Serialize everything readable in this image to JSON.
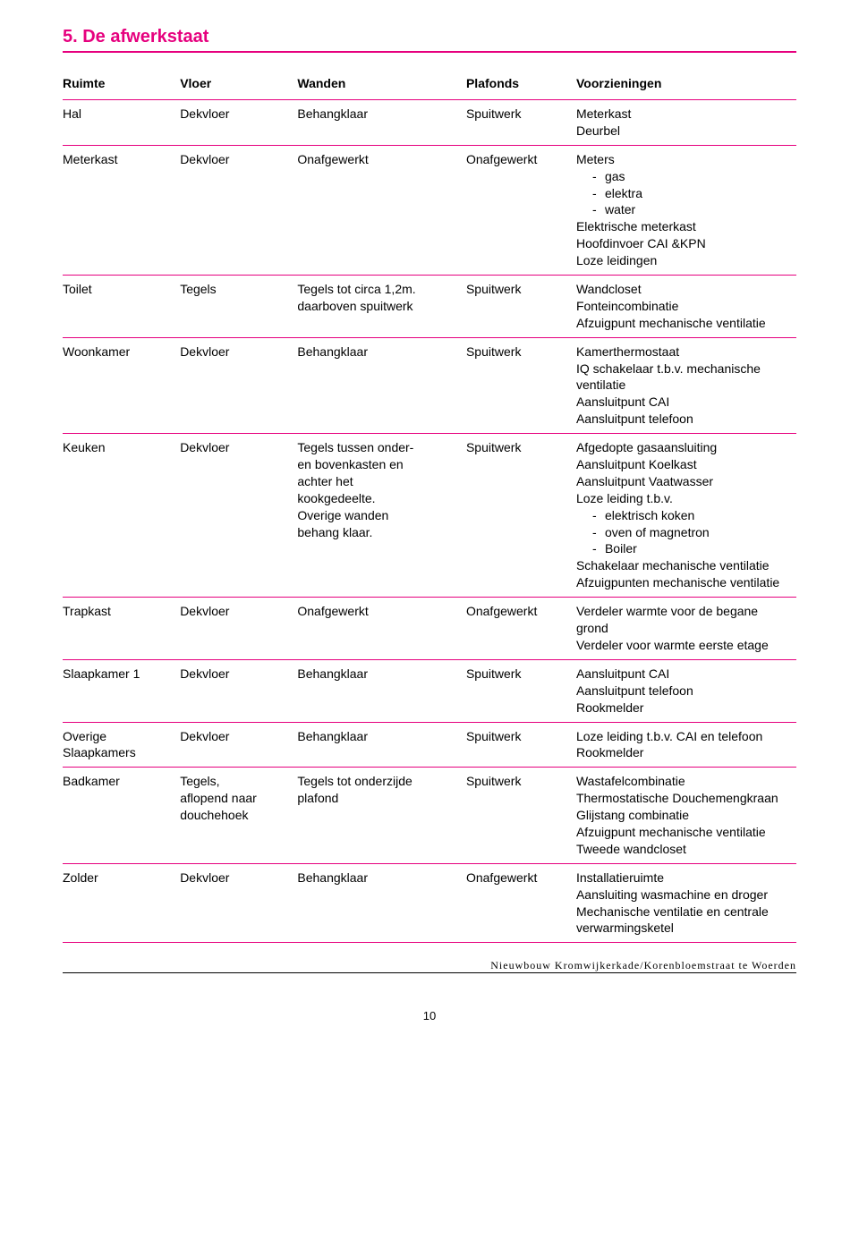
{
  "accent_color": "#e6007e",
  "heading": "5. De afwerkstaat",
  "columns": [
    "Ruimte",
    "Vloer",
    "Wanden",
    "Plafonds",
    "Voorzieningen"
  ],
  "rows": [
    {
      "ruimte": "Hal",
      "vloer": "Dekvloer",
      "wanden": "Behangklaar",
      "plafonds": "Spuitwerk",
      "voorz_lines": [
        "Meterkast",
        "Deurbel"
      ]
    },
    {
      "ruimte": "Meterkast",
      "vloer": "Dekvloer",
      "wanden": "Onafgewerkt",
      "plafonds": "Onafgewerkt",
      "voorz_lines": [
        "Meters"
      ],
      "voorz_sublist": [
        "gas",
        "elektra",
        "water"
      ],
      "voorz_lines_after": [
        "Elektrische meterkast",
        "Hoofdinvoer CAI &KPN",
        "Loze leidingen"
      ]
    },
    {
      "ruimte": "Toilet",
      "vloer": "Tegels",
      "wanden": "Tegels tot circa 1,2m.\ndaarboven spuitwerk",
      "plafonds": "Spuitwerk",
      "voorz_lines": [
        "Wandcloset",
        "Fonteincombinatie",
        "Afzuigpunt mechanische ventilatie"
      ]
    },
    {
      "ruimte": "Woonkamer",
      "vloer": "Dekvloer",
      "wanden": "Behangklaar",
      "plafonds": "Spuitwerk",
      "voorz_lines": [
        "Kamerthermostaat",
        "IQ schakelaar t.b.v. mechanische ventilatie",
        "Aansluitpunt CAI",
        "Aansluitpunt telefoon"
      ]
    },
    {
      "ruimte": "Keuken",
      "vloer": "Dekvloer",
      "wanden": "Tegels tussen onder-\nen bovenkasten en\nachter het\nkookgedeelte.\nOverige wanden\nbehang klaar.",
      "plafonds": "Spuitwerk",
      "voorz_lines": [
        "Afgedopte gasaansluiting",
        "Aansluitpunt Koelkast",
        "Aansluitpunt Vaatwasser",
        "Loze leiding t.b.v."
      ],
      "voorz_sublist": [
        "elektrisch koken",
        "oven of magnetron",
        "Boiler"
      ],
      "voorz_lines_after": [
        "Schakelaar mechanische ventilatie",
        "Afzuigpunten mechanische ventilatie"
      ]
    },
    {
      "ruimte": "Trapkast",
      "vloer": "Dekvloer",
      "wanden": "Onafgewerkt",
      "plafonds": "Onafgewerkt",
      "voorz_lines": [
        "Verdeler warmte voor de begane grond",
        "Verdeler voor warmte eerste etage"
      ]
    },
    {
      "ruimte": "Slaapkamer 1",
      "vloer": "Dekvloer",
      "wanden": "Behangklaar",
      "plafonds": "Spuitwerk",
      "voorz_lines": [
        "Aansluitpunt CAI",
        "Aansluitpunt telefoon",
        "Rookmelder"
      ]
    },
    {
      "ruimte": "Overige Slaapkamers",
      "vloer": "Dekvloer",
      "wanden": "Behangklaar",
      "plafonds": "Spuitwerk",
      "voorz_lines": [
        "Loze leiding t.b.v. CAI en telefoon",
        "Rookmelder"
      ]
    },
    {
      "ruimte": "Badkamer",
      "vloer": "Tegels,\naflopend naar\ndouchehoek",
      "wanden": "Tegels tot onderzijde\nplafond",
      "plafonds": "Spuitwerk",
      "voorz_lines": [
        "Wastafelcombinatie",
        "Thermostatische Douchemengkraan",
        "Glijstang combinatie",
        "Afzuigpunt mechanische ventilatie",
        "Tweede wandcloset"
      ]
    },
    {
      "ruimte": "Zolder",
      "vloer": "Dekvloer",
      "wanden": "Behangklaar",
      "plafonds": "Onafgewerkt",
      "voorz_lines": [
        "Installatieruimte",
        "Aansluiting wasmachine en droger",
        "Mechanische ventilatie en centrale verwarmingsketel"
      ]
    }
  ],
  "footer_text": "Nieuwbouw Kromwijkerkade/Korenbloemstraat te Woerden",
  "page_number": "10"
}
